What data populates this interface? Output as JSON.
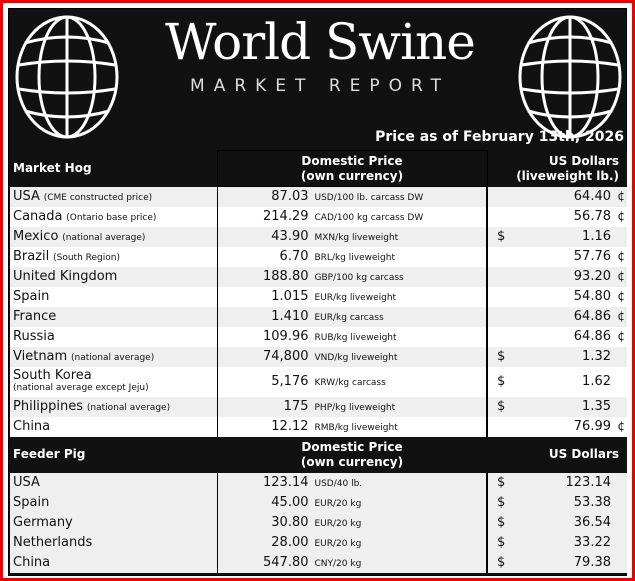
{
  "header": {
    "title": "World Swine",
    "subtitle": "MARKET REPORT",
    "date": "Price as of February 13th, 2026"
  },
  "market_hog": {
    "headers": {
      "section": "Market Hog",
      "domestic": "Domestic Price\n(own currency)",
      "domestic_l1": "Domestic Price",
      "domestic_l2": "(own currency)",
      "usd_l1": "US Dollars",
      "usd_l2": "(liveweight lb.)"
    },
    "rows": [
      {
        "country": "USA",
        "note": "(CME constructed price)",
        "price": "87.03",
        "unit": "USD/100 lb. carcass DW",
        "usd_sign": "",
        "usd": "64.40",
        "cent": "¢"
      },
      {
        "country": "Canada",
        "note": "(Ontario base price)",
        "price": "214.29",
        "unit": "CAD/100 kg carcass DW",
        "usd_sign": "",
        "usd": "56.78",
        "cent": "¢"
      },
      {
        "country": "Mexico",
        "note": "(national average)",
        "price": "43.90",
        "unit": "MXN/kg liveweight",
        "usd_sign": "$",
        "usd": "1.16",
        "cent": ""
      },
      {
        "country": "Brazil",
        "note": "(South Region)",
        "price": "6.70",
        "unit": "BRL/kg liveweight",
        "usd_sign": "",
        "usd": "57.76",
        "cent": "¢"
      },
      {
        "country": "United Kingdom",
        "note": "",
        "price": "188.80",
        "unit": "GBP/100 kg carcass",
        "usd_sign": "",
        "usd": "93.20",
        "cent": "¢"
      },
      {
        "country": "Spain",
        "note": "",
        "price": "1.015",
        "unit": "EUR/kg liveweight",
        "usd_sign": "",
        "usd": "54.80",
        "cent": "¢"
      },
      {
        "country": "France",
        "note": "",
        "price": "1.410",
        "unit": "EUR/kg carcass",
        "usd_sign": "",
        "usd": "64.86",
        "cent": "¢"
      },
      {
        "country": "Russia",
        "note": "",
        "price": "109.96",
        "unit": "RUB/kg liveweight",
        "usd_sign": "",
        "usd": "64.86",
        "cent": "¢"
      },
      {
        "country": "Vietnam",
        "note": "(national average)",
        "price": "74,800",
        "unit": "VND/kg liveweight",
        "usd_sign": "$",
        "usd": "1.32",
        "cent": ""
      },
      {
        "country": "South Korea",
        "note": "(national average except Jeju)",
        "price": "5,176",
        "unit": "KRW/kg carcass",
        "usd_sign": "$",
        "usd": "1.62",
        "cent": ""
      },
      {
        "country": "Philippines",
        "note": "(national average)",
        "price": "175",
        "unit": "PHP/kg liveweight",
        "usd_sign": "$",
        "usd": "1.35",
        "cent": ""
      },
      {
        "country": "China",
        "note": "",
        "price": "12.12",
        "unit": "RMB/kg liveweight",
        "usd_sign": "",
        "usd": "76.99",
        "cent": "¢"
      }
    ]
  },
  "feeder_pig": {
    "headers": {
      "section": "Feeder Pig",
      "domestic_l1": "Domestic Price",
      "domestic_l2": "(own currency)",
      "usd_l1": "US Dollars"
    },
    "rows": [
      {
        "country": "USA",
        "price": "123.14",
        "unit": "USD/40 lb.",
        "usd_sign": "$",
        "usd": "123.14"
      },
      {
        "country": "Spain",
        "price": "45.00",
        "unit": "EUR/20 kg",
        "usd_sign": "$",
        "usd": "53.38"
      },
      {
        "country": "Germany",
        "price": "30.80",
        "unit": "EUR/20 kg",
        "usd_sign": "$",
        "usd": "36.54"
      },
      {
        "country": "Netherlands",
        "price": "28.00",
        "unit": "EUR/20 kg",
        "usd_sign": "$",
        "usd": "33.22"
      },
      {
        "country": "China",
        "price": "547.80",
        "unit": "CNY/20 kg",
        "usd_sign": "$",
        "usd": "79.38"
      }
    ]
  }
}
